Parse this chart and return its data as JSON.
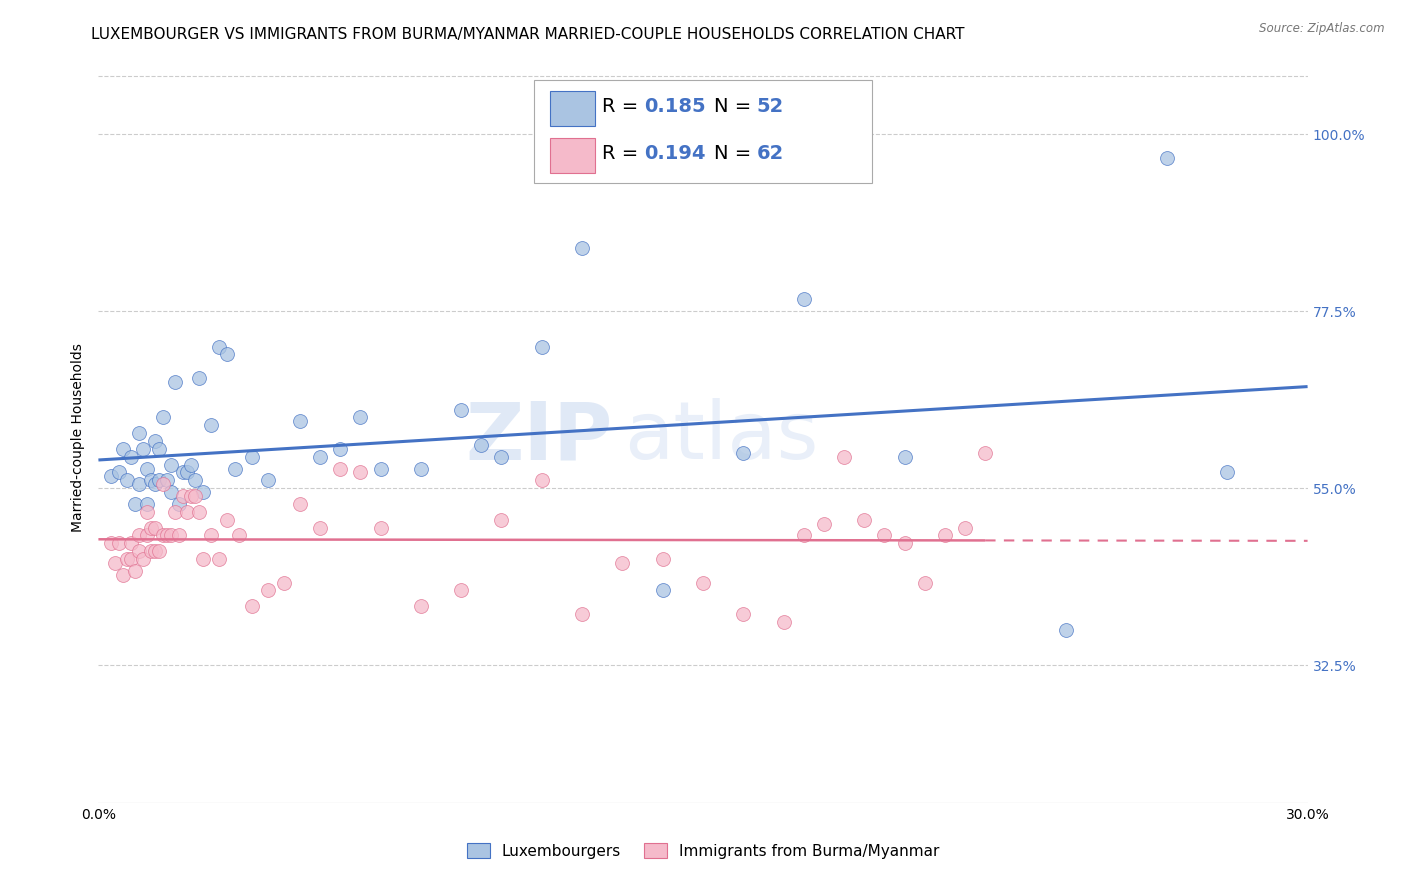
{
  "title": "LUXEMBOURGER VS IMMIGRANTS FROM BURMA/MYANMAR MARRIED-COUPLE HOUSEHOLDS CORRELATION CHART",
  "source": "Source: ZipAtlas.com",
  "ylabel": "Married-couple Households",
  "xlim": [
    0.0,
    0.3
  ],
  "ylim": [
    0.15,
    1.08
  ],
  "xticks": [
    0.0,
    0.05,
    0.1,
    0.15,
    0.2,
    0.25,
    0.3
  ],
  "yticks_right": [
    0.325,
    0.55,
    0.775,
    1.0
  ],
  "yticklabels_right": [
    "32.5%",
    "55.0%",
    "77.5%",
    "100.0%"
  ],
  "blue_scatter_x": [
    0.003,
    0.005,
    0.006,
    0.007,
    0.008,
    0.009,
    0.01,
    0.01,
    0.011,
    0.012,
    0.012,
    0.013,
    0.014,
    0.014,
    0.015,
    0.015,
    0.016,
    0.017,
    0.018,
    0.018,
    0.019,
    0.02,
    0.021,
    0.022,
    0.023,
    0.024,
    0.025,
    0.026,
    0.028,
    0.03,
    0.032,
    0.034,
    0.038,
    0.042,
    0.05,
    0.055,
    0.06,
    0.065,
    0.07,
    0.08,
    0.09,
    0.095,
    0.1,
    0.11,
    0.12,
    0.14,
    0.16,
    0.175,
    0.2,
    0.24,
    0.265,
    0.28
  ],
  "blue_scatter_y": [
    0.565,
    0.57,
    0.6,
    0.56,
    0.59,
    0.53,
    0.62,
    0.555,
    0.6,
    0.53,
    0.575,
    0.56,
    0.61,
    0.555,
    0.56,
    0.6,
    0.64,
    0.56,
    0.545,
    0.58,
    0.685,
    0.53,
    0.57,
    0.57,
    0.58,
    0.56,
    0.69,
    0.545,
    0.63,
    0.73,
    0.72,
    0.575,
    0.59,
    0.56,
    0.635,
    0.59,
    0.6,
    0.64,
    0.575,
    0.575,
    0.65,
    0.605,
    0.59,
    0.73,
    0.855,
    0.42,
    0.595,
    0.79,
    0.59,
    0.37,
    0.97,
    0.57
  ],
  "pink_scatter_x": [
    0.003,
    0.004,
    0.005,
    0.006,
    0.007,
    0.008,
    0.008,
    0.009,
    0.01,
    0.01,
    0.011,
    0.012,
    0.012,
    0.013,
    0.013,
    0.014,
    0.014,
    0.015,
    0.016,
    0.016,
    0.017,
    0.018,
    0.019,
    0.02,
    0.021,
    0.022,
    0.023,
    0.024,
    0.025,
    0.026,
    0.028,
    0.03,
    0.032,
    0.035,
    0.038,
    0.042,
    0.046,
    0.05,
    0.055,
    0.06,
    0.065,
    0.07,
    0.08,
    0.09,
    0.1,
    0.11,
    0.12,
    0.13,
    0.14,
    0.15,
    0.16,
    0.17,
    0.175,
    0.18,
    0.185,
    0.19,
    0.195,
    0.2,
    0.205,
    0.21,
    0.215,
    0.22
  ],
  "pink_scatter_y": [
    0.48,
    0.455,
    0.48,
    0.44,
    0.46,
    0.48,
    0.46,
    0.445,
    0.47,
    0.49,
    0.46,
    0.49,
    0.52,
    0.47,
    0.5,
    0.5,
    0.47,
    0.47,
    0.49,
    0.555,
    0.49,
    0.49,
    0.52,
    0.49,
    0.54,
    0.52,
    0.54,
    0.54,
    0.52,
    0.46,
    0.49,
    0.46,
    0.51,
    0.49,
    0.4,
    0.42,
    0.43,
    0.53,
    0.5,
    0.575,
    0.57,
    0.5,
    0.4,
    0.42,
    0.51,
    0.56,
    0.39,
    0.455,
    0.46,
    0.43,
    0.39,
    0.38,
    0.49,
    0.505,
    0.59,
    0.51,
    0.49,
    0.48,
    0.43,
    0.49,
    0.5,
    0.595
  ],
  "blue_color": "#aac4e2",
  "pink_color": "#f5baca",
  "blue_line_color": "#4472c4",
  "pink_line_color": "#e07090",
  "blue_R": 0.185,
  "blue_N": 52,
  "pink_R": 0.194,
  "pink_N": 62,
  "legend_blue_label": "Luxembourgers",
  "legend_pink_label": "Immigrants from Burma/Myanmar",
  "watermark_zip": "ZIP",
  "watermark_atlas": "atlas",
  "background_color": "#ffffff",
  "grid_color": "#cccccc",
  "title_fontsize": 11,
  "axis_fontsize": 10,
  "tick_fontsize": 10,
  "marker_size": 100
}
